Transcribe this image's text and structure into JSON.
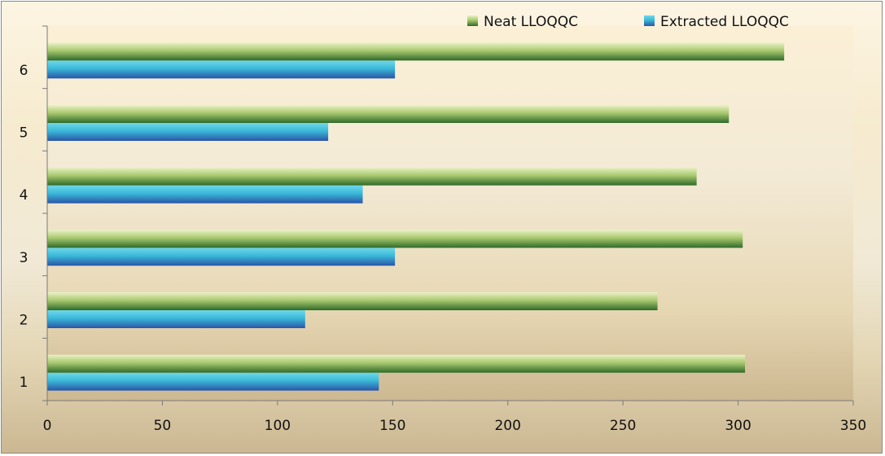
{
  "chart_data": {
    "type": "bar",
    "orientation": "horizontal",
    "categories": [
      "1",
      "2",
      "3",
      "4",
      "5",
      "6"
    ],
    "series": [
      {
        "name": "Extracted LLOQQC",
        "values": [
          144,
          112,
          151,
          137,
          122,
          151
        ],
        "color": "#3a86c8"
      },
      {
        "name": "Neat LLOQQC",
        "values": [
          303,
          265,
          302,
          282,
          296,
          320
        ],
        "color": "#4a8a3a"
      }
    ],
    "title": "",
    "xlabel": "",
    "ylabel": "",
    "xlim": [
      0,
      350
    ],
    "x_ticks": [
      "0",
      "50",
      "100",
      "150",
      "200",
      "250",
      "300",
      "350"
    ],
    "grid": false,
    "legend_position": "top-right"
  }
}
